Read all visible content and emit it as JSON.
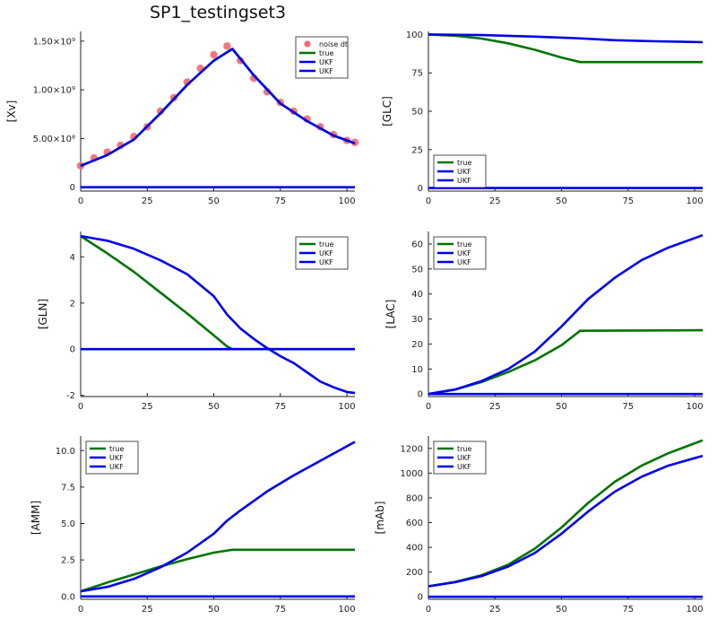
{
  "figure": {
    "title": "SP1_testingset3"
  },
  "chart_data": [
    {
      "type": "scatter",
      "ylabel": "[Xv]",
      "xlim": [
        0,
        103
      ],
      "ylim": [
        -40000000.0,
        1600000000.0
      ],
      "xticks": [
        0,
        25,
        50,
        75,
        100
      ],
      "yticks": [
        0,
        500000000,
        1000000000,
        1500000000
      ],
      "ytick_labels": [
        "0",
        "5.00×10⁸",
        "1.00×10⁹",
        "1.50×10⁹"
      ],
      "legend": "top-right",
      "series": [
        {
          "name": "noise dt",
          "kind": "scatter",
          "color": "#f46a6f",
          "points": [
            [
              0,
              220000000.0
            ],
            [
              5,
              300000000.0
            ],
            [
              10,
              360000000.0
            ],
            [
              15,
              430000000.0
            ],
            [
              20,
              520000000.0
            ],
            [
              25,
              620000000.0
            ],
            [
              30,
              780000000.0
            ],
            [
              35,
              920000000.0
            ],
            [
              40,
              1080000000.0
            ],
            [
              45,
              1220000000.0
            ],
            [
              50,
              1360000000.0
            ],
            [
              55,
              1450000000.0
            ],
            [
              60,
              1300000000.0
            ],
            [
              65,
              1120000000.0
            ],
            [
              70,
              980000000.0
            ],
            [
              75,
              870000000.0
            ],
            [
              80,
              780000000.0
            ],
            [
              85,
              700000000.0
            ],
            [
              90,
              620000000.0
            ],
            [
              95,
              540000000.0
            ],
            [
              100,
              480000000.0
            ],
            [
              103,
              460000000.0
            ]
          ]
        },
        {
          "name": "true",
          "kind": "line",
          "color": "#007400",
          "points": [
            [
              0,
              220000000.0
            ],
            [
              10,
              330000000.0
            ],
            [
              20,
              490000000.0
            ],
            [
              30,
              760000000.0
            ],
            [
              40,
              1050000000.0
            ],
            [
              50,
              1300000000.0
            ],
            [
              57,
              1420000000.0
            ],
            [
              65,
              1150000000.0
            ],
            [
              75,
              860000000.0
            ],
            [
              85,
              680000000.0
            ],
            [
              95,
              530000000.0
            ],
            [
              103,
              450000000.0
            ]
          ]
        },
        {
          "name": "UKF",
          "kind": "line",
          "color": "#0000ee",
          "points": [
            [
              0,
              220000000.0
            ],
            [
              10,
              330000000.0
            ],
            [
              20,
              490000000.0
            ],
            [
              30,
              760000000.0
            ],
            [
              40,
              1050000000.0
            ],
            [
              50,
              1300000000.0
            ],
            [
              57,
              1420000000.0
            ],
            [
              65,
              1150000000.0
            ],
            [
              75,
              860000000.0
            ],
            [
              85,
              680000000.0
            ],
            [
              95,
              530000000.0
            ],
            [
              103,
              450000000.0
            ]
          ]
        },
        {
          "name": "UKF",
          "kind": "line",
          "color": "#0000ee",
          "points": [
            [
              0,
              0
            ],
            [
              103,
              0
            ]
          ]
        }
      ]
    },
    {
      "type": "line",
      "ylabel": "[GLC]",
      "xlim": [
        0,
        103
      ],
      "ylim": [
        -2,
        102
      ],
      "xticks": [
        0,
        25,
        50,
        75,
        100
      ],
      "yticks": [
        0,
        25,
        50,
        75,
        100
      ],
      "ytick_labels": [
        "0",
        "25",
        "50",
        "75",
        "100"
      ],
      "legend": "bottom-left",
      "series": [
        {
          "name": "true",
          "color": "#007400",
          "points": [
            [
              0,
              100
            ],
            [
              10,
              99.2
            ],
            [
              20,
              97.3
            ],
            [
              30,
              94.2
            ],
            [
              40,
              90
            ],
            [
              50,
              85
            ],
            [
              57,
              82
            ],
            [
              103,
              82
            ]
          ]
        },
        {
          "name": "UKF",
          "color": "#0000ee",
          "points": [
            [
              0,
              100
            ],
            [
              20,
              99.6
            ],
            [
              40,
              98.6
            ],
            [
              55,
              97.6
            ],
            [
              70,
              96.3
            ],
            [
              85,
              95.6
            ],
            [
              103,
              95
            ]
          ]
        },
        {
          "name": "UKF",
          "color": "#0000ee",
          "points": [
            [
              0,
              0
            ],
            [
              103,
              0
            ]
          ]
        }
      ]
    },
    {
      "type": "line",
      "ylabel": "[GLN]",
      "xlim": [
        0,
        103
      ],
      "ylim": [
        -2.05,
        5.1
      ],
      "xticks": [
        0,
        25,
        50,
        75,
        100
      ],
      "yticks": [
        -2,
        0,
        2,
        4
      ],
      "ytick_labels": [
        "-2",
        "0",
        "2",
        "4"
      ],
      "legend": "top-right",
      "series": [
        {
          "name": "true",
          "color": "#007400",
          "points": [
            [
              0,
              4.9
            ],
            [
              10,
              4.15
            ],
            [
              20,
              3.35
            ],
            [
              30,
              2.45
            ],
            [
              40,
              1.55
            ],
            [
              50,
              0.6
            ],
            [
              55,
              0.12
            ],
            [
              57,
              0
            ],
            [
              103,
              0
            ]
          ]
        },
        {
          "name": "UKF",
          "color": "#0000ee",
          "points": [
            [
              0,
              4.9
            ],
            [
              10,
              4.7
            ],
            [
              20,
              4.35
            ],
            [
              30,
              3.85
            ],
            [
              40,
              3.25
            ],
            [
              50,
              2.3
            ],
            [
              55,
              1.5
            ],
            [
              60,
              0.9
            ],
            [
              65,
              0.45
            ],
            [
              70,
              0.05
            ],
            [
              75,
              -0.3
            ],
            [
              80,
              -0.6
            ],
            [
              85,
              -1.0
            ],
            [
              90,
              -1.4
            ],
            [
              95,
              -1.65
            ],
            [
              100,
              -1.85
            ],
            [
              103,
              -1.9
            ]
          ]
        },
        {
          "name": "UKF",
          "color": "#0000ee",
          "points": [
            [
              0,
              0
            ],
            [
              103,
              0
            ]
          ]
        }
      ]
    },
    {
      "type": "line",
      "ylabel": "[LAC]",
      "xlim": [
        0,
        103
      ],
      "ylim": [
        -1,
        65
      ],
      "xticks": [
        0,
        25,
        50,
        75,
        100
      ],
      "yticks": [
        0,
        10,
        20,
        30,
        40,
        50,
        60
      ],
      "ytick_labels": [
        "0",
        "10",
        "20",
        "30",
        "40",
        "50",
        "60"
      ],
      "legend": "top-left",
      "series": [
        {
          "name": "true",
          "color": "#007400",
          "points": [
            [
              0,
              0
            ],
            [
              10,
              1.8
            ],
            [
              20,
              4.8
            ],
            [
              30,
              8.8
            ],
            [
              40,
              13.5
            ],
            [
              50,
              19.5
            ],
            [
              57,
              25.3
            ],
            [
              103,
              25.5
            ]
          ]
        },
        {
          "name": "UKF",
          "color": "#0000ee",
          "points": [
            [
              0,
              0
            ],
            [
              10,
              1.8
            ],
            [
              20,
              5.2
            ],
            [
              30,
              10
            ],
            [
              40,
              17
            ],
            [
              50,
              27
            ],
            [
              60,
              38
            ],
            [
              70,
              46.5
            ],
            [
              80,
              53.5
            ],
            [
              90,
              58.5
            ],
            [
              103,
              63.5
            ]
          ]
        },
        {
          "name": "UKF",
          "color": "#0000ee",
          "points": [
            [
              0,
              0
            ],
            [
              103,
              0
            ]
          ]
        }
      ]
    },
    {
      "type": "line",
      "ylabel": "[AMM]",
      "xlim": [
        0,
        103
      ],
      "ylim": [
        -0.2,
        11
      ],
      "xticks": [
        0,
        25,
        50,
        75,
        100
      ],
      "yticks": [
        0,
        2.5,
        5,
        7.5,
        10
      ],
      "ytick_labels": [
        "0.0",
        "2.5",
        "5.0",
        "7.5",
        "10.0"
      ],
      "legend": "top-left",
      "series": [
        {
          "name": "true",
          "color": "#007400",
          "points": [
            [
              0,
              0.35
            ],
            [
              10,
              0.95
            ],
            [
              20,
              1.5
            ],
            [
              30,
              2.05
            ],
            [
              40,
              2.55
            ],
            [
              50,
              3.0
            ],
            [
              57,
              3.2
            ],
            [
              103,
              3.2
            ]
          ]
        },
        {
          "name": "UKF",
          "color": "#0000ee",
          "points": [
            [
              0,
              0.35
            ],
            [
              10,
              0.65
            ],
            [
              20,
              1.2
            ],
            [
              30,
              2.0
            ],
            [
              40,
              3.0
            ],
            [
              50,
              4.3
            ],
            [
              55,
              5.2
            ],
            [
              60,
              5.9
            ],
            [
              70,
              7.2
            ],
            [
              80,
              8.3
            ],
            [
              90,
              9.3
            ],
            [
              100,
              10.3
            ],
            [
              103,
              10.6
            ]
          ]
        },
        {
          "name": "UKF",
          "color": "#0000ee",
          "points": [
            [
              0,
              0
            ],
            [
              103,
              0
            ]
          ]
        }
      ]
    },
    {
      "type": "line",
      "ylabel": "[mAb]",
      "xlim": [
        0,
        103
      ],
      "ylim": [
        -20,
        1300
      ],
      "xticks": [
        0,
        25,
        50,
        75,
        100
      ],
      "yticks": [
        0,
        200,
        400,
        600,
        800,
        1000,
        1200
      ],
      "ytick_labels": [
        "0",
        "200",
        "400",
        "600",
        "800",
        "1000",
        "1200"
      ],
      "legend": "top-left",
      "series": [
        {
          "name": "true",
          "color": "#007400",
          "points": [
            [
              0,
              85
            ],
            [
              10,
              120
            ],
            [
              20,
              175
            ],
            [
              30,
              260
            ],
            [
              40,
              390
            ],
            [
              50,
              560
            ],
            [
              60,
              760
            ],
            [
              70,
              930
            ],
            [
              80,
              1060
            ],
            [
              90,
              1160
            ],
            [
              103,
              1265
            ]
          ]
        },
        {
          "name": "UKF",
          "color": "#0000ee",
          "points": [
            [
              0,
              85
            ],
            [
              10,
              118
            ],
            [
              20,
              168
            ],
            [
              30,
              245
            ],
            [
              40,
              355
            ],
            [
              50,
              510
            ],
            [
              60,
              690
            ],
            [
              70,
              850
            ],
            [
              80,
              970
            ],
            [
              90,
              1060
            ],
            [
              103,
              1140
            ]
          ]
        },
        {
          "name": "UKF",
          "color": "#0000ee",
          "points": [
            [
              0,
              0
            ],
            [
              103,
              0
            ]
          ]
        }
      ]
    }
  ]
}
